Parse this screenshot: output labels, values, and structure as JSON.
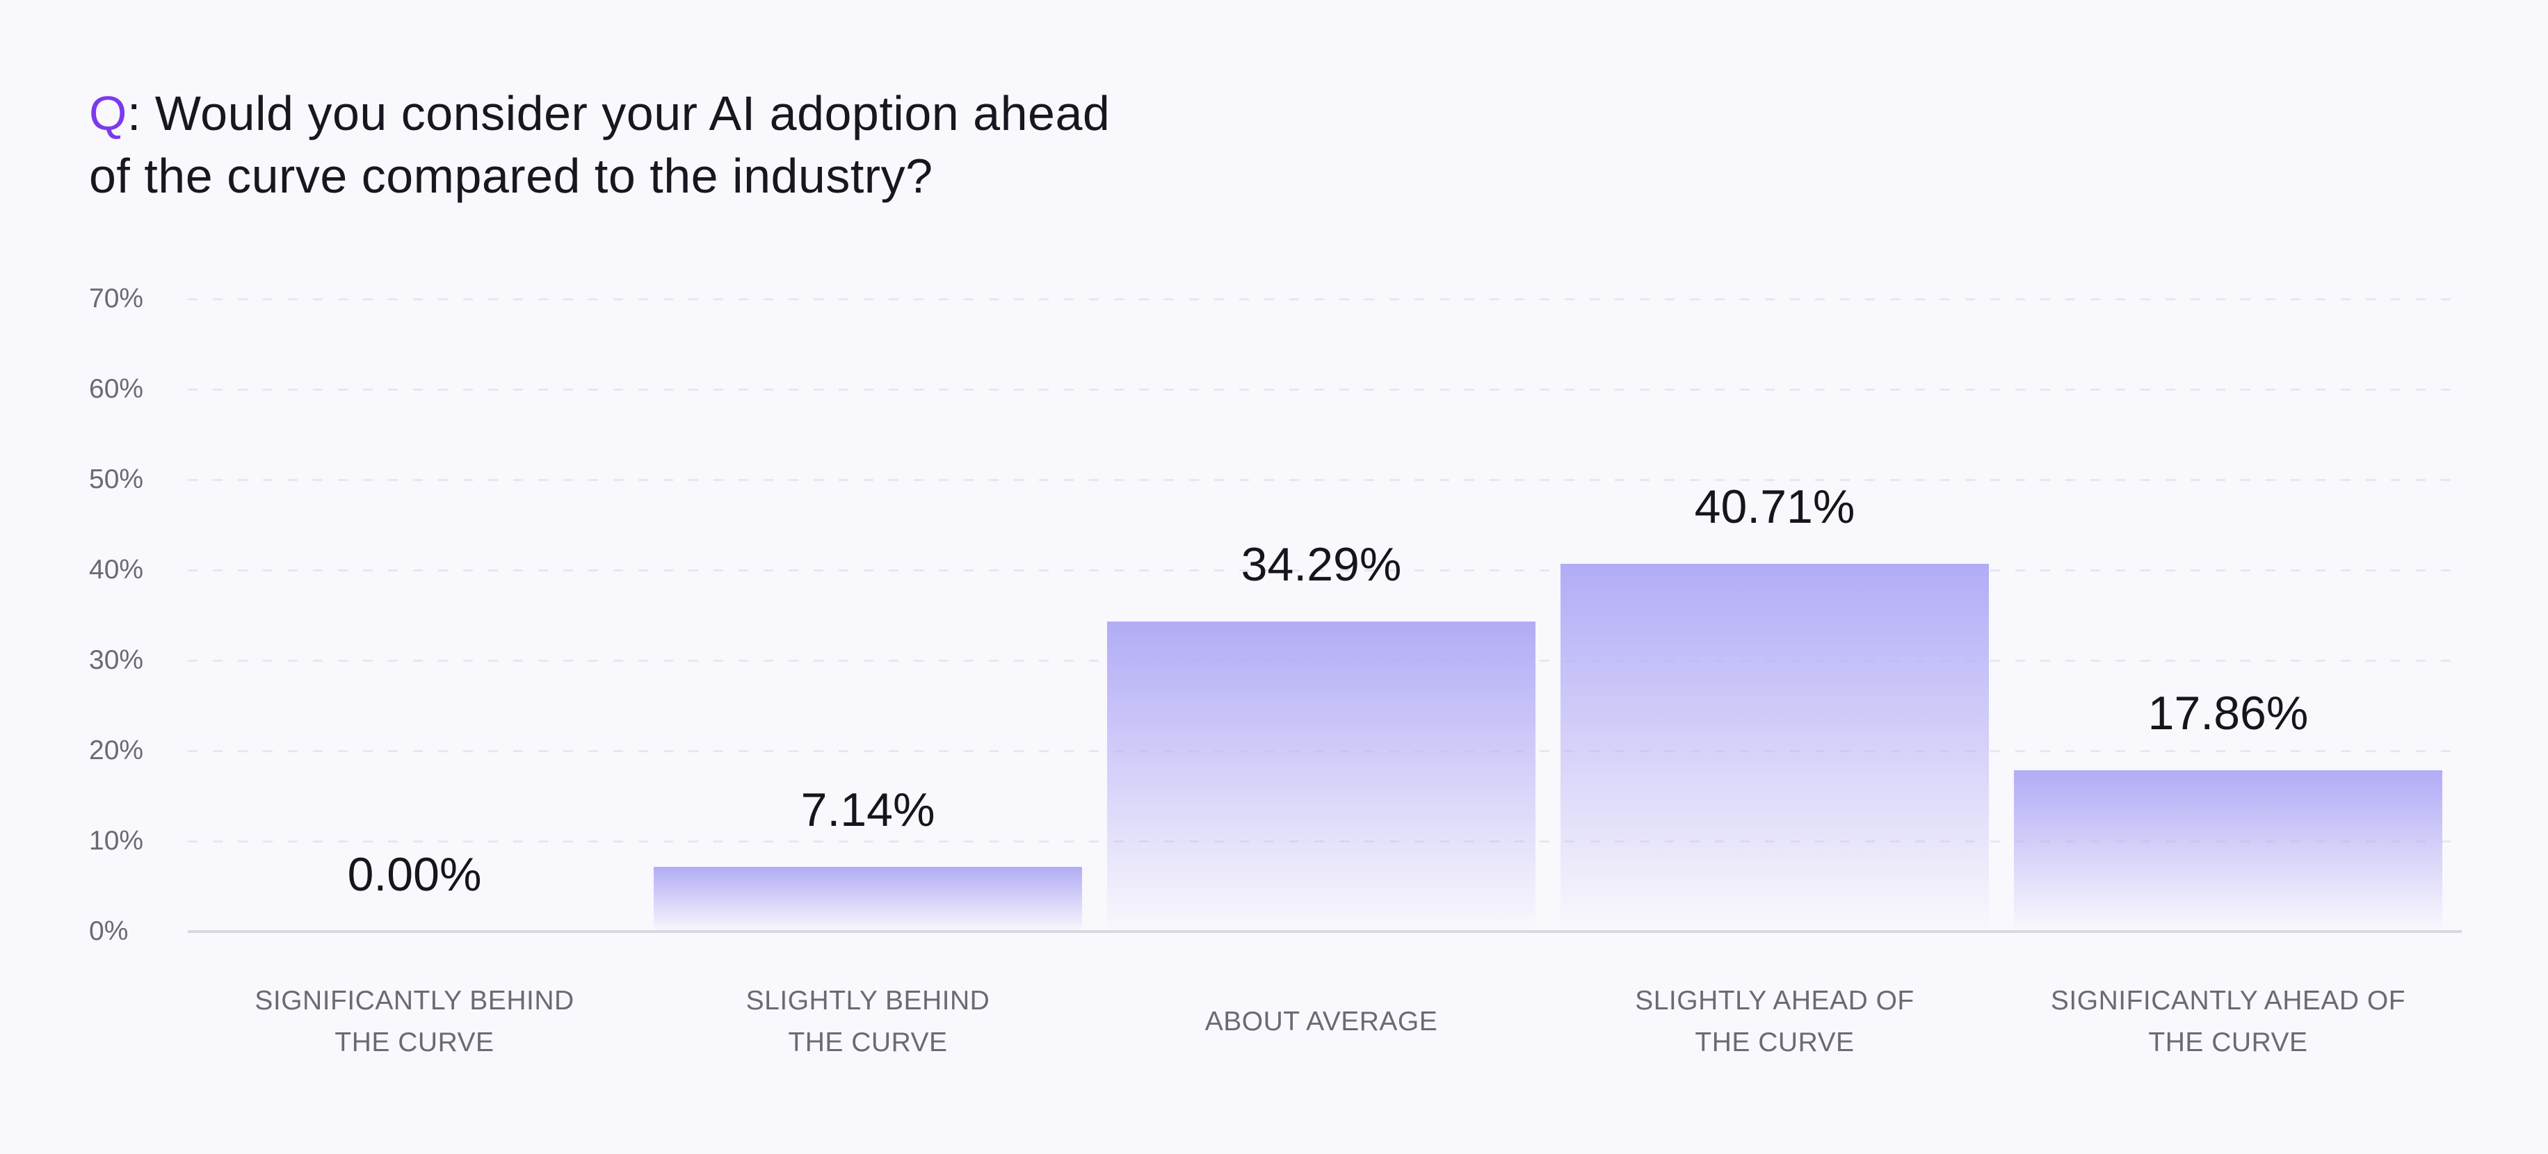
{
  "window": {
    "background_color": "#f9f8fc"
  },
  "title": {
    "q": "Q",
    "line1_rest": ": Would you consider your AI adoption ahead",
    "line2": "of the curve compared to the industry?",
    "accent_color": "#7c3aed",
    "text_color": "#17171f"
  },
  "chart_data": {
    "type": "bar",
    "title": "Q: Would you consider your AI adoption ahead of the curve compared to the industry?",
    "categories": [
      "SIGNIFICANTLY BEHIND THE CURVE",
      "SLIGHTLY BEHIND THE CURVE",
      "ABOUT AVERAGE",
      "SLIGHTLY AHEAD OF THE CURVE",
      "SIGNIFICANTLY AHEAD OF THE CURVE"
    ],
    "category_lines": [
      [
        "SIGNIFICANTLY BEHIND",
        "THE CURVE"
      ],
      [
        "SLIGHTLY BEHIND",
        "THE CURVE"
      ],
      [
        "ABOUT AVERAGE"
      ],
      [
        "SLIGHTLY AHEAD OF",
        "THE CURVE"
      ],
      [
        "SIGNIFICANTLY AHEAD OF",
        "THE CURVE"
      ]
    ],
    "values": [
      0.0,
      7.14,
      34.29,
      40.71,
      17.86
    ],
    "value_labels": [
      "0.00%",
      "7.14%",
      "34.29%",
      "40.71%",
      "17.86%"
    ],
    "y_ticks": [
      "70%",
      "60%",
      "50%",
      "40%",
      "30%",
      "20%",
      "10%",
      "0%"
    ],
    "y_tick_percents": [
      70,
      60,
      50,
      40,
      30,
      20,
      10,
      0
    ],
    "ylim": [
      0,
      70
    ],
    "xlabel": "",
    "ylabel": "",
    "legend": "none",
    "grid": "horizontal-dashed",
    "bar_color_top": "#b2acf6",
    "bar_color_bottom": "rgba(249,248,252,0)",
    "grid_color": "#e8e6f0",
    "axis_line_color": "#d9d8e1",
    "tick_label_color": "#6b6a74",
    "value_label_color": "#16151c"
  }
}
